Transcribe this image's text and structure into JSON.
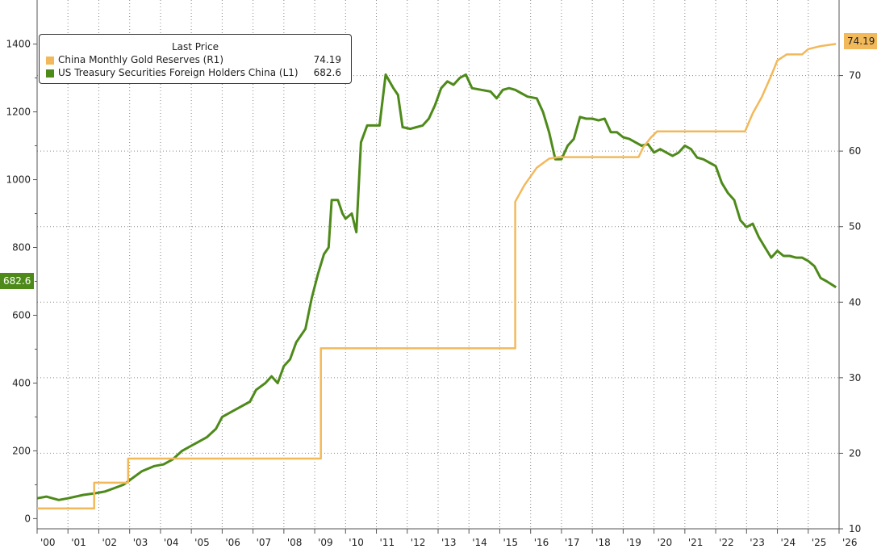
{
  "chart_data": {
    "type": "line",
    "legend": {
      "title": "Last Price",
      "placement": "top-left",
      "entries": [
        {
          "name": "China Monthly Gold Reserves  (R1)",
          "value": "74.19"
        },
        {
          "name": "US Treasury Securities Foreign Holders China  (L1)",
          "value": "682.6"
        }
      ]
    },
    "x_ticks": [
      "'00",
      "'01",
      "'02",
      "'03",
      "'04",
      "'05",
      "'06",
      "'07",
      "'08",
      "'09",
      "'10",
      "'11",
      "'12",
      "'13",
      "'14",
      "'15",
      "'16",
      "'17",
      "'18",
      "'19",
      "'20",
      "'21",
      "'22",
      "'23",
      "'24",
      "'25",
      "'26"
    ],
    "x_range": [
      2000,
      2026
    ],
    "left_axis": {
      "ylim": [
        -30,
        1530
      ],
      "ticks": [
        "0",
        "200",
        "400",
        "600",
        "800",
        "1000",
        "1200",
        "1400"
      ],
      "tick_values": [
        0,
        200,
        400,
        600,
        800,
        1000,
        1200,
        1400
      ]
    },
    "right_axis": {
      "ylim": [
        10,
        80
      ],
      "ticks": [
        "10",
        "20",
        "30",
        "40",
        "50",
        "60",
        "70"
      ],
      "tick_values": [
        10,
        20,
        30,
        40,
        50,
        60,
        70
      ]
    },
    "grid": true,
    "series": [
      {
        "name": "US Treasury Securities Foreign Holders China  (L1)",
        "axis": "left",
        "color": "#4e8a1a",
        "last_value": "682.6",
        "points": [
          [
            2000.0,
            60
          ],
          [
            2000.3,
            65
          ],
          [
            2000.7,
            55
          ],
          [
            2001.0,
            60
          ],
          [
            2001.5,
            70
          ],
          [
            2001.9,
            75
          ],
          [
            2002.2,
            80
          ],
          [
            2002.5,
            90
          ],
          [
            2002.8,
            100
          ],
          [
            2003.1,
            120
          ],
          [
            2003.4,
            140
          ],
          [
            2003.8,
            155
          ],
          [
            2004.1,
            160
          ],
          [
            2004.4,
            175
          ],
          [
            2004.7,
            200
          ],
          [
            2005.0,
            215
          ],
          [
            2005.2,
            225
          ],
          [
            2005.5,
            240
          ],
          [
            2005.8,
            265
          ],
          [
            2006.0,
            300
          ],
          [
            2006.3,
            315
          ],
          [
            2006.6,
            330
          ],
          [
            2006.9,
            345
          ],
          [
            2007.1,
            380
          ],
          [
            2007.4,
            400
          ],
          [
            2007.6,
            420
          ],
          [
            2007.8,
            400
          ],
          [
            2008.0,
            450
          ],
          [
            2008.2,
            470
          ],
          [
            2008.4,
            520
          ],
          [
            2008.7,
            560
          ],
          [
            2008.9,
            650
          ],
          [
            2009.1,
            720
          ],
          [
            2009.3,
            780
          ],
          [
            2009.45,
            800
          ],
          [
            2009.55,
            940
          ],
          [
            2009.75,
            940
          ],
          [
            2009.9,
            900
          ],
          [
            2010.0,
            885
          ],
          [
            2010.2,
            900
          ],
          [
            2010.35,
            845
          ],
          [
            2010.5,
            1110
          ],
          [
            2010.7,
            1160
          ],
          [
            2010.9,
            1160
          ],
          [
            2011.1,
            1160
          ],
          [
            2011.3,
            1310
          ],
          [
            2011.55,
            1270
          ],
          [
            2011.7,
            1250
          ],
          [
            2011.85,
            1155
          ],
          [
            2012.1,
            1150
          ],
          [
            2012.3,
            1155
          ],
          [
            2012.5,
            1160
          ],
          [
            2012.7,
            1180
          ],
          [
            2012.9,
            1220
          ],
          [
            2013.1,
            1270
          ],
          [
            2013.3,
            1290
          ],
          [
            2013.5,
            1280
          ],
          [
            2013.7,
            1300
          ],
          [
            2013.9,
            1310
          ],
          [
            2014.1,
            1270
          ],
          [
            2014.4,
            1265
          ],
          [
            2014.7,
            1260
          ],
          [
            2014.9,
            1240
          ],
          [
            2015.1,
            1265
          ],
          [
            2015.3,
            1270
          ],
          [
            2015.5,
            1265
          ],
          [
            2015.7,
            1255
          ],
          [
            2015.9,
            1245
          ],
          [
            2016.2,
            1240
          ],
          [
            2016.4,
            1200
          ],
          [
            2016.6,
            1140
          ],
          [
            2016.8,
            1060
          ],
          [
            2017.0,
            1060
          ],
          [
            2017.2,
            1100
          ],
          [
            2017.4,
            1120
          ],
          [
            2017.6,
            1185
          ],
          [
            2017.8,
            1180
          ],
          [
            2018.0,
            1180
          ],
          [
            2018.2,
            1175
          ],
          [
            2018.4,
            1180
          ],
          [
            2018.6,
            1140
          ],
          [
            2018.8,
            1140
          ],
          [
            2019.0,
            1125
          ],
          [
            2019.2,
            1120
          ],
          [
            2019.4,
            1110
          ],
          [
            2019.6,
            1100
          ],
          [
            2019.8,
            1105
          ],
          [
            2020.0,
            1080
          ],
          [
            2020.2,
            1090
          ],
          [
            2020.4,
            1080
          ],
          [
            2020.6,
            1070
          ],
          [
            2020.8,
            1080
          ],
          [
            2021.0,
            1100
          ],
          [
            2021.2,
            1090
          ],
          [
            2021.4,
            1065
          ],
          [
            2021.6,
            1060
          ],
          [
            2021.8,
            1050
          ],
          [
            2022.0,
            1040
          ],
          [
            2022.2,
            990
          ],
          [
            2022.4,
            960
          ],
          [
            2022.6,
            940
          ],
          [
            2022.8,
            880
          ],
          [
            2023.0,
            860
          ],
          [
            2023.2,
            870
          ],
          [
            2023.4,
            830
          ],
          [
            2023.6,
            800
          ],
          [
            2023.8,
            770
          ],
          [
            2024.0,
            790
          ],
          [
            2024.2,
            775
          ],
          [
            2024.4,
            775
          ],
          [
            2024.6,
            770
          ],
          [
            2024.8,
            770
          ],
          [
            2025.0,
            760
          ],
          [
            2025.2,
            745
          ],
          [
            2025.4,
            710
          ],
          [
            2025.6,
            700
          ],
          [
            2025.9,
            682.6
          ]
        ]
      },
      {
        "name": "China Monthly Gold Reserves  (R1)",
        "axis": "right",
        "color": "#f2b95a",
        "last_value": "74.19",
        "points": [
          [
            2000.0,
            12.7
          ],
          [
            2001.85,
            12.7
          ],
          [
            2001.85,
            16.1
          ],
          [
            2002.95,
            16.1
          ],
          [
            2002.95,
            19.3
          ],
          [
            2009.2,
            19.3
          ],
          [
            2009.2,
            33.9
          ],
          [
            2015.5,
            33.9
          ],
          [
            2015.5,
            53.3
          ],
          [
            2015.8,
            55.5
          ],
          [
            2016.2,
            57.8
          ],
          [
            2016.6,
            59.0
          ],
          [
            2016.9,
            59.2
          ],
          [
            2019.5,
            59.2
          ],
          [
            2019.65,
            60.5
          ],
          [
            2019.9,
            61.8
          ],
          [
            2020.1,
            62.6
          ],
          [
            2022.95,
            62.6
          ],
          [
            2023.2,
            65.0
          ],
          [
            2023.5,
            67.2
          ],
          [
            2023.8,
            70.0
          ],
          [
            2024.0,
            72.0
          ],
          [
            2024.3,
            72.8
          ],
          [
            2024.8,
            72.8
          ],
          [
            2025.0,
            73.5
          ],
          [
            2025.4,
            73.9
          ],
          [
            2025.9,
            74.19
          ]
        ]
      }
    ]
  }
}
